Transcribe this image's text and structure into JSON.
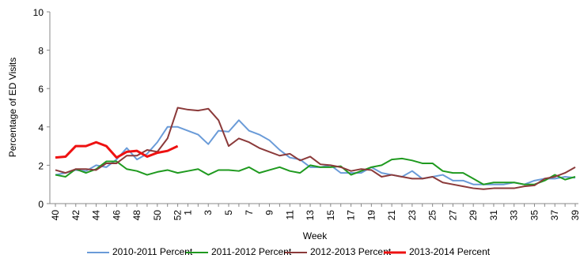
{
  "chart_data": {
    "type": "line",
    "y_label": "Percentage of ED Visits",
    "x_label": "Week",
    "categories": [
      "40",
      null,
      "42",
      null,
      "44",
      null,
      "46",
      null,
      "48",
      null,
      "50",
      null,
      "52",
      "1",
      null,
      "3",
      null,
      "5",
      null,
      "7",
      null,
      "9",
      null,
      "11",
      null,
      "13",
      null,
      "15",
      null,
      "17",
      null,
      "19",
      null,
      "21",
      null,
      "23",
      null,
      "25",
      null,
      "27",
      null,
      "29",
      null,
      "31",
      null,
      "33",
      null,
      "35",
      null,
      "37",
      null,
      "39"
    ],
    "series": [
      {
        "name": "2010-2011 Percent",
        "color": "#6a9bd8",
        "values": [
          1.5,
          1.6,
          1.75,
          1.7,
          2.0,
          1.9,
          2.3,
          2.9,
          2.3,
          2.6,
          3.2,
          4.0,
          4.0,
          3.8,
          3.6,
          3.1,
          3.8,
          3.75,
          4.35,
          3.8,
          3.6,
          3.3,
          2.8,
          2.4,
          2.3,
          1.9,
          1.9,
          2.0,
          1.6,
          1.6,
          1.6,
          1.9,
          1.6,
          1.5,
          1.4,
          1.7,
          1.3,
          1.4,
          1.5,
          1.2,
          1.2,
          1.0,
          1.0,
          1.0,
          1.0,
          1.1,
          1.0,
          1.2,
          1.3,
          1.3,
          1.4,
          1.35
        ]
      },
      {
        "name": "2011-2012 Percent",
        "color": "#1f9a1f",
        "values": [
          1.5,
          1.4,
          1.8,
          1.6,
          1.8,
          2.2,
          2.2,
          1.8,
          1.7,
          1.5,
          1.65,
          1.75,
          1.6,
          1.7,
          1.8,
          1.5,
          1.75,
          1.75,
          1.7,
          1.9,
          1.6,
          1.75,
          1.9,
          1.7,
          1.6,
          2.0,
          1.9,
          1.9,
          1.95,
          1.5,
          1.7,
          1.9,
          2.0,
          2.3,
          2.35,
          2.25,
          2.1,
          2.1,
          1.7,
          1.6,
          1.6,
          1.3,
          1.0,
          1.1,
          1.1,
          1.1,
          1.0,
          1.0,
          1.2,
          1.5,
          1.25,
          1.4
        ]
      },
      {
        "name": "2012-2013 Percent",
        "color": "#8b3a3a",
        "values": [
          1.75,
          1.6,
          1.8,
          1.8,
          1.75,
          2.1,
          2.1,
          2.5,
          2.5,
          2.8,
          2.7,
          3.4,
          5.0,
          4.9,
          4.85,
          4.95,
          4.35,
          3.0,
          3.4,
          3.2,
          2.9,
          2.7,
          2.5,
          2.6,
          2.25,
          2.45,
          2.05,
          2.0,
          1.9,
          1.7,
          1.8,
          1.75,
          1.4,
          1.5,
          1.4,
          1.3,
          1.3,
          1.4,
          1.1,
          1.0,
          0.9,
          0.8,
          0.75,
          0.8,
          0.8,
          0.8,
          0.9,
          0.95,
          1.3,
          1.4,
          1.6,
          1.9
        ]
      },
      {
        "name": "2013-2014 Percent",
        "color": "#ee1111",
        "width": 3,
        "values": [
          2.4,
          2.45,
          3.0,
          3.0,
          3.2,
          3.0,
          2.4,
          2.7,
          2.75,
          2.45,
          2.65,
          2.75,
          3.0,
          null,
          null,
          null,
          null,
          null,
          null,
          null,
          null,
          null,
          null,
          null,
          null,
          null,
          null,
          null,
          null,
          null,
          null,
          null,
          null,
          null,
          null,
          null,
          null,
          null,
          null,
          null,
          null,
          null,
          null,
          null,
          null,
          null,
          null,
          null,
          null,
          null,
          null,
          null
        ]
      }
    ],
    "ylim": [
      0,
      10
    ],
    "yticks": [
      0,
      2,
      4,
      6,
      8,
      10
    ],
    "legend": "bottom"
  }
}
